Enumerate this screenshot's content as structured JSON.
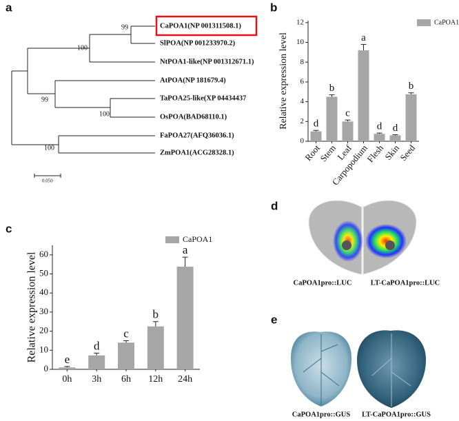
{
  "panel_labels": [
    "a",
    "b",
    "c",
    "d",
    "e"
  ],
  "tree": {
    "leaves": [
      "CaPOA1(NP 001311508.1)",
      "SlPOA(NP 001233970.2)",
      "NtPOA1-like(NP 001312671.1)",
      "AtPOA(NP 181679.4)",
      "TaPOA25-like(XP 04434437",
      "OsPOA(BAD68110.1)",
      "FaPOA27(AFQ36036.1)",
      "ZmPOA1(ACG28328.1)"
    ],
    "bootstrap": [
      99,
      100,
      99,
      100,
      100
    ],
    "scale": "0.050"
  },
  "chart_data": [
    {
      "type": "bar",
      "ylabel": "Relative expression level",
      "categories": [
        "Root",
        "Stem",
        "Leaf",
        "Carpopodium",
        "Flesh",
        "Skin",
        "Seed"
      ],
      "series": [
        {
          "name": "CaPOA1",
          "color": "#a6a6a6",
          "values": [
            1.0,
            4.5,
            2.0,
            9.2,
            0.75,
            0.6,
            4.75
          ],
          "errors": [
            0.1,
            0.2,
            0.15,
            0.6,
            0.08,
            0.06,
            0.15
          ],
          "letters": [
            "d",
            "b",
            "c",
            "a",
            "d",
            "d",
            "b"
          ]
        }
      ],
      "ylim": [
        0,
        12.2
      ],
      "yticks": [
        0,
        2,
        4,
        6,
        8,
        10,
        12
      ]
    },
    {
      "type": "bar",
      "ylabel": "Relative expression level",
      "categories": [
        "0h",
        "3h",
        "6h",
        "12h",
        "24h"
      ],
      "series": [
        {
          "name": "CaPOA1",
          "color": "#a6a6a6",
          "values": [
            1,
            7.3,
            14,
            22.5,
            53.8
          ],
          "errors": [
            0.5,
            1.2,
            1,
            2.5,
            5
          ],
          "letters": [
            "e",
            "d",
            "c",
            "b",
            "a"
          ]
        }
      ],
      "ylim": [
        0,
        65
      ],
      "yticks": [
        0,
        10,
        20,
        30,
        40,
        50,
        60
      ]
    }
  ],
  "images": {
    "d": [
      "CaPOA1pro::LUC",
      "LT-CaPOA1pro::LUC"
    ],
    "e": [
      "CaPOA1pro::GUS",
      "LT-CaPOA1pro::GUS"
    ]
  }
}
